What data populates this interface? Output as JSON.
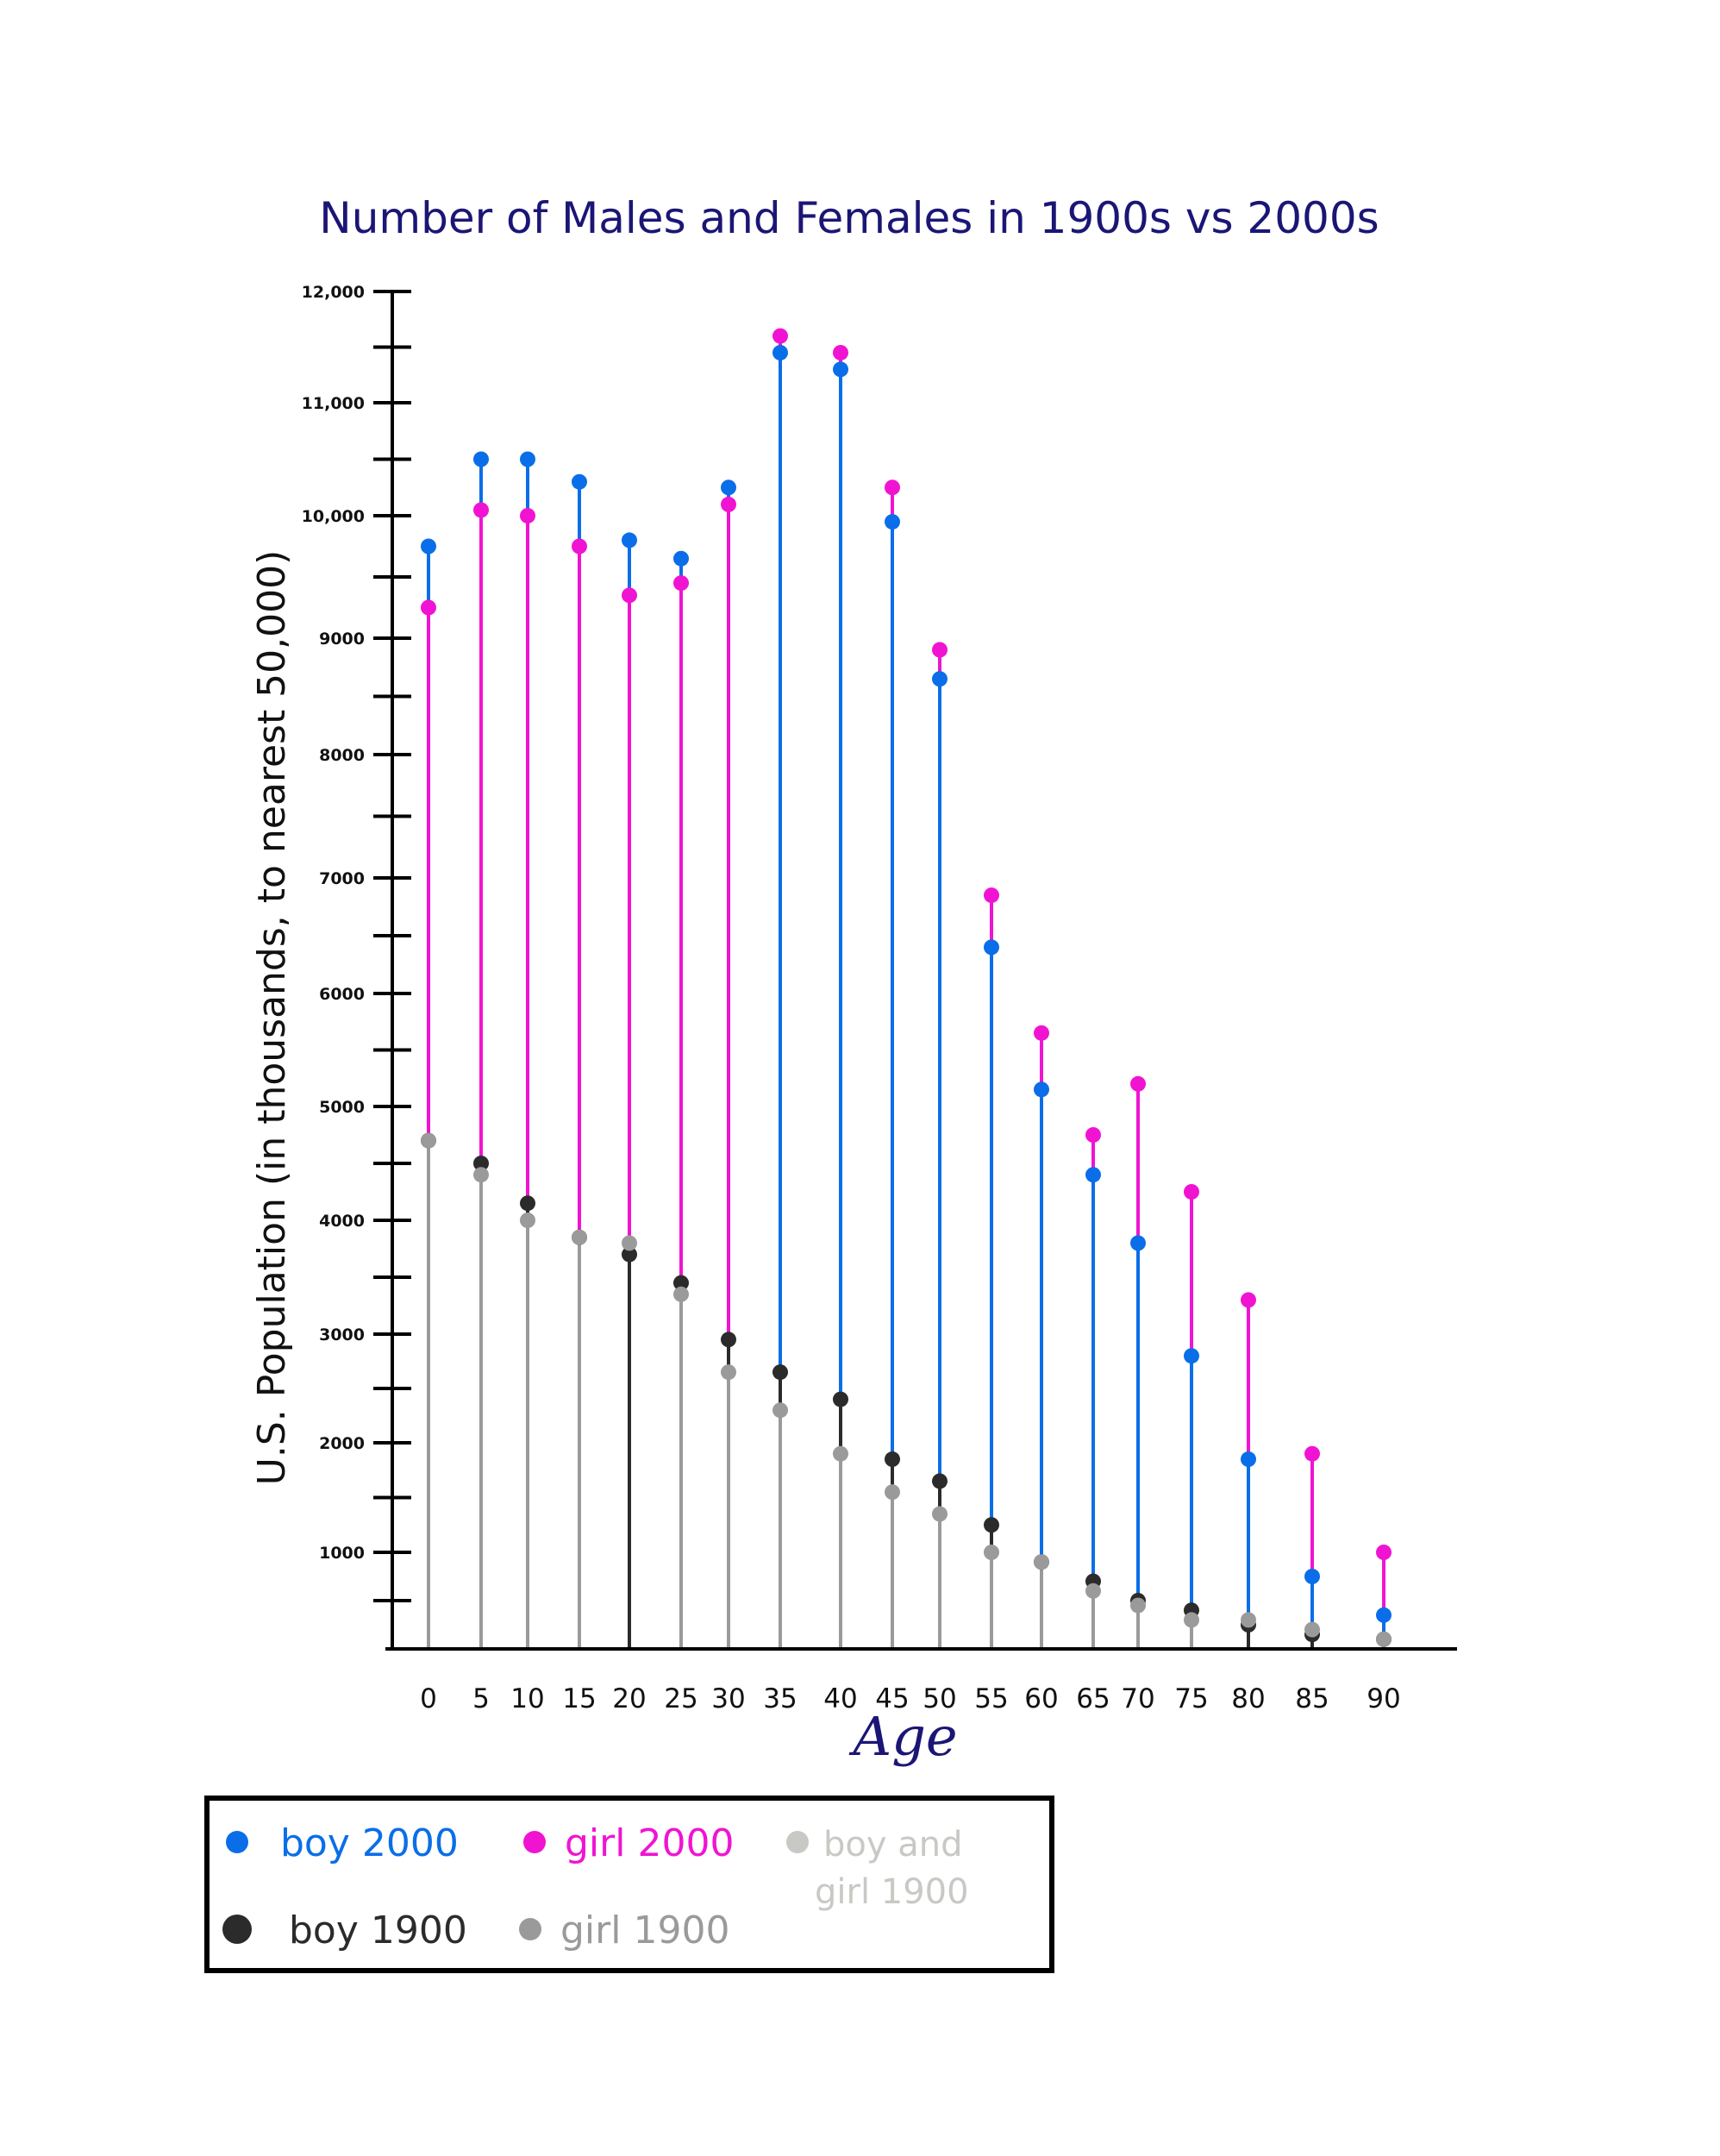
{
  "chart_data": {
    "type": "lollipop",
    "title": "Number of Males and Females in 1900s vs 2000s",
    "xlabel": "Age",
    "ylabel": "U.S. Population (in thousands, to nearest 50,000)",
    "ylim": [
      0,
      12000
    ],
    "grid": false,
    "x": [
      0,
      5,
      10,
      15,
      20,
      25,
      30,
      35,
      40,
      45,
      50,
      55,
      60,
      65,
      70,
      75,
      80,
      85,
      90
    ],
    "x_tick_labels": [
      "0",
      "5",
      "10",
      "15",
      "20",
      "25",
      "30",
      "35",
      "40",
      "45",
      "50",
      "55",
      "60",
      "65",
      "70",
      "75",
      "80",
      "85",
      "90"
    ],
    "y_tick_labels": [
      {
        "value": 1000,
        "label": "1000"
      },
      {
        "value": 2000,
        "label": "2000"
      },
      {
        "value": 3000,
        "label": "3000"
      },
      {
        "value": 4000,
        "label": "4000"
      },
      {
        "value": 5000,
        "label": "5000"
      },
      {
        "value": 6000,
        "label": "6000"
      },
      {
        "value": 7000,
        "label": "7000"
      },
      {
        "value": 8000,
        "label": "8000"
      },
      {
        "value": 9000,
        "label": "9000"
      },
      {
        "value": 10000,
        "label": "10,000"
      },
      {
        "value": 11000,
        "label": "11,000"
      },
      {
        "value": 12000,
        "label": "12,000"
      }
    ],
    "legend_position": "bottom-left",
    "legend": [
      {
        "label": "boy 2000",
        "color": "#0a6ee8"
      },
      {
        "label": "girl 2000",
        "color": "#f014d2"
      },
      {
        "label": "boy and girl 1900",
        "color": "#c8c8c4"
      },
      {
        "label": "boy 1900",
        "color": "#2b2b2b"
      },
      {
        "label": "girl 1900",
        "color": "#9a9a9a"
      }
    ],
    "series": [
      {
        "name": "boy 2000",
        "color": "#0a6ee8",
        "values": [
          9750,
          10500,
          10500,
          10300,
          9800,
          9650,
          10250,
          11450,
          11300,
          9950,
          8650,
          6400,
          5150,
          4400,
          3800,
          2800,
          1850,
          750,
          350
        ]
      },
      {
        "name": "girl 2000",
        "color": "#f014d2",
        "values": [
          9250,
          10050,
          10000,
          9750,
          9350,
          9450,
          10100,
          11600,
          11450,
          10250,
          8900,
          6850,
          5650,
          4750,
          5200,
          4250,
          3300,
          1900,
          1000
        ]
      },
      {
        "name": "boy 1900",
        "color": "#2b2b2b",
        "values": [
          4700,
          4500,
          4150,
          3850,
          3700,
          3450,
          2950,
          2650,
          2400,
          1850,
          1650,
          1250,
          900,
          700,
          500,
          400,
          250,
          150,
          100
        ]
      },
      {
        "name": "girl 1900",
        "color": "#9a9a9a",
        "values": [
          4700,
          4400,
          4000,
          3850,
          3800,
          3350,
          2650,
          2300,
          1900,
          1550,
          1350,
          1000,
          900,
          600,
          450,
          300,
          300,
          200,
          100
        ]
      }
    ]
  }
}
